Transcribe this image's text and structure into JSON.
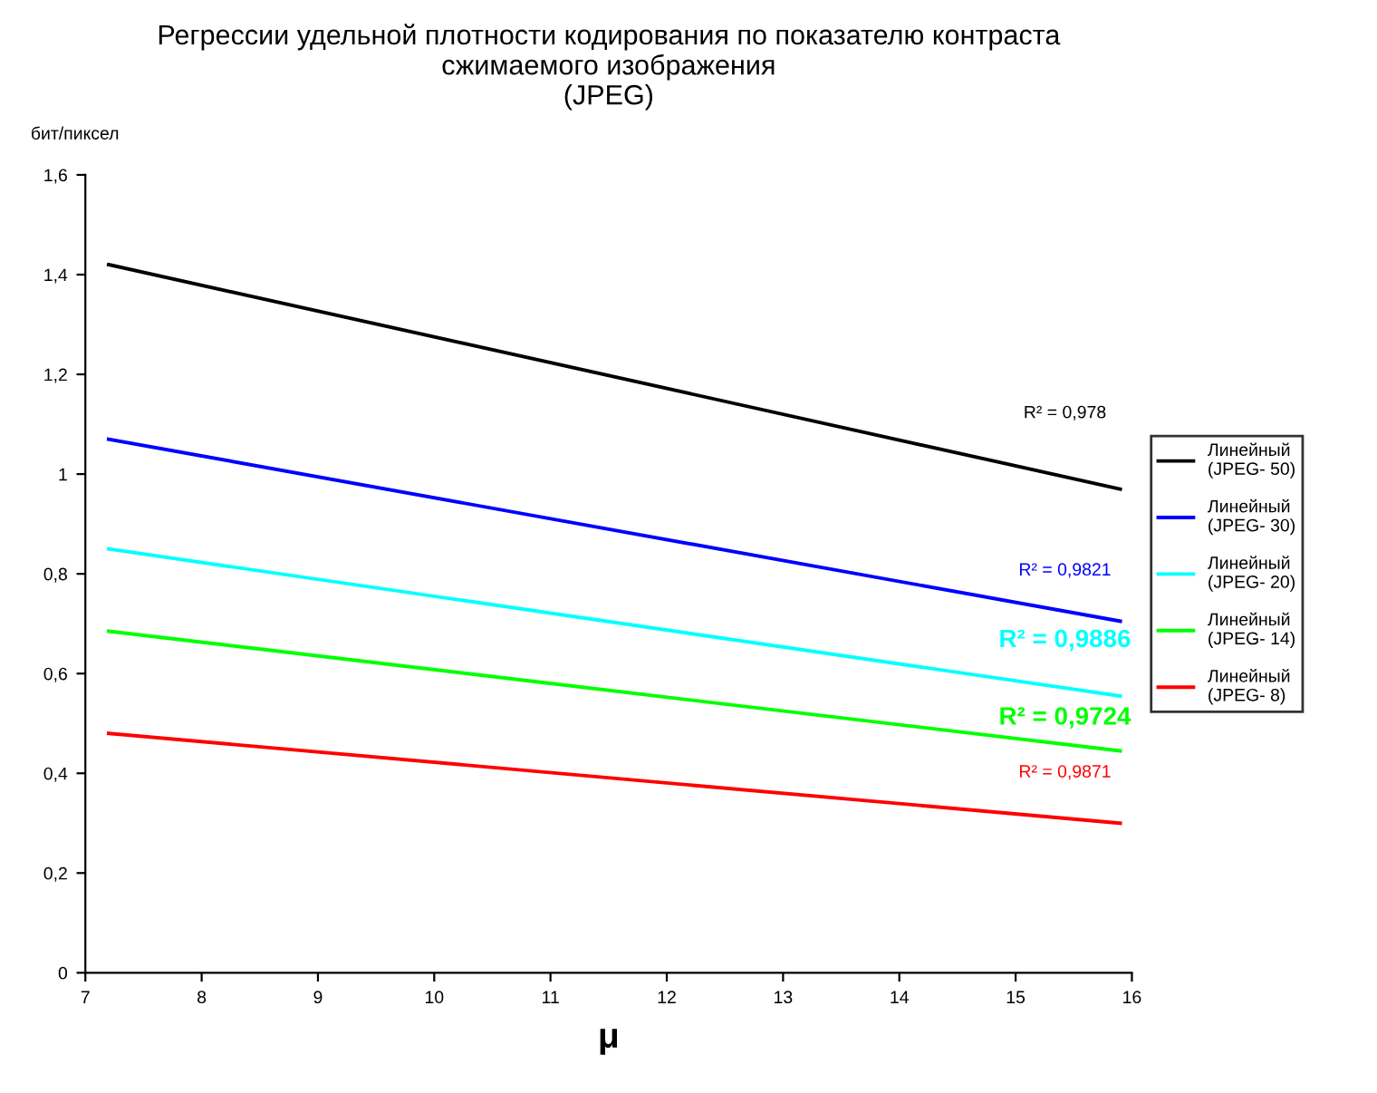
{
  "chart_data": {
    "type": "line",
    "title": "Регрессии удельной плотности кодирования по показателю контраста\nсжимаемого изображения\n(JPEG)",
    "ylabel": "бит/пиксел",
    "xlabel": "μ",
    "x": [
      7.2,
      15.9
    ],
    "series": [
      {
        "name": "Линейный\n(JPEG- 50)",
        "color": "#000000",
        "values": [
          1.42,
          0.97
        ]
      },
      {
        "name": "Линейный\n(JPEG- 30)",
        "color": "#0000ff",
        "values": [
          1.07,
          0.705
        ]
      },
      {
        "name": "Линейный\n(JPEG- 20)",
        "color": "#00ffff",
        "values": [
          0.85,
          0.555
        ]
      },
      {
        "name": "Линейный\n(JPEG- 14)",
        "color": "#00ff00",
        "values": [
          0.685,
          0.445
        ]
      },
      {
        "name": "Линейный\n(JPEG- 8)",
        "color": "#ff0000",
        "values": [
          0.48,
          0.3
        ]
      }
    ],
    "annotations": [
      "R² = 0,978",
      "R² = 0,9821",
      "R² = 0,9886",
      "R² = 0,9724",
      "R² = 0,9871"
    ],
    "xlim": [
      7,
      16
    ],
    "xticks": [
      7,
      8,
      9,
      10,
      11,
      12,
      13,
      14,
      15,
      16
    ],
    "ylim": [
      0,
      1.6
    ],
    "yticks": [
      0,
      {
        "value": 0.2,
        "label": "0,2"
      },
      {
        "value": 0.4,
        "label": "0,4"
      },
      {
        "value": 0.6,
        "label": "0,6"
      },
      {
        "value": 0.8,
        "label": "0,8"
      },
      1,
      {
        "value": 1.2,
        "label": "1,2"
      },
      {
        "value": 1.4,
        "label": "1,4"
      },
      {
        "value": 1.6,
        "label": "1,6"
      }
    ],
    "grid": false,
    "legend": "right",
    "marker": "none",
    "line_style": "solid"
  }
}
